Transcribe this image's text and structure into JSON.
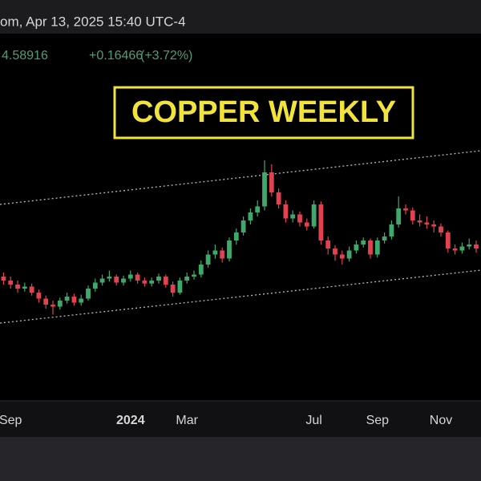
{
  "chart_data": {
    "type": "candlestick",
    "header": "om, Apr 13, 2025 15:40 UTC-4",
    "last_price": "4.58916",
    "change": "+0.16466",
    "change_percent": "(+3.72%)",
    "title": "COPPER WEEKLY",
    "up_color": "#3fa86b",
    "down_color": "#e0434f",
    "ylim": [
      2.8,
      6.4
    ],
    "categories": [
      null,
      "Sep",
      null,
      null,
      null,
      null,
      null,
      null,
      null,
      null,
      null,
      null,
      null,
      null,
      null,
      null,
      null,
      null,
      "2024",
      null,
      null,
      null,
      null,
      null,
      null,
      null,
      "Mar",
      null,
      null,
      null,
      null,
      null,
      null,
      null,
      null,
      null,
      null,
      null,
      null,
      null,
      null,
      null,
      null,
      null,
      "Jul",
      null,
      null,
      null,
      null,
      null,
      null,
      null,
      null,
      "Sep",
      null,
      null,
      null,
      null,
      null,
      null,
      null,
      null,
      "Nov",
      null,
      null,
      null,
      null,
      null
    ],
    "open": [
      4.04,
      4.0,
      3.96,
      3.92,
      3.94,
      3.88,
      3.82,
      3.76,
      3.74,
      3.8,
      3.84,
      3.78,
      3.82,
      3.92,
      3.98,
      4.02,
      4.04,
      3.98,
      4.02,
      4.06,
      4.0,
      3.97,
      4.0,
      4.04,
      3.96,
      3.88,
      4.0,
      4.04,
      4.06,
      4.16,
      4.26,
      4.3,
      4.22,
      4.4,
      4.48,
      4.6,
      4.68,
      4.74,
      5.08,
      4.88,
      4.76,
      4.62,
      4.66,
      4.58,
      4.54,
      4.76,
      4.4,
      4.32,
      4.26,
      4.22,
      4.3,
      4.36,
      4.4,
      4.26,
      4.4,
      4.44,
      4.56,
      4.72,
      4.7,
      4.6,
      4.58,
      4.56,
      4.54,
      4.48,
      4.32,
      4.3,
      4.34,
      4.36
    ],
    "high": [
      4.08,
      4.04,
      4.0,
      3.98,
      3.97,
      3.91,
      3.85,
      3.8,
      3.83,
      3.88,
      3.87,
      3.86,
      3.95,
      4.02,
      4.06,
      4.1,
      4.06,
      4.05,
      4.1,
      4.08,
      4.03,
      4.03,
      4.07,
      4.06,
      3.99,
      4.03,
      4.08,
      4.1,
      4.2,
      4.3,
      4.36,
      4.33,
      4.43,
      4.52,
      4.64,
      4.72,
      4.8,
      5.2,
      5.16,
      4.92,
      4.8,
      4.7,
      4.69,
      4.62,
      4.8,
      4.79,
      4.44,
      4.35,
      4.3,
      4.34,
      4.4,
      4.43,
      4.42,
      4.43,
      4.48,
      4.6,
      4.84,
      4.76,
      4.73,
      4.66,
      4.64,
      4.6,
      4.57,
      4.5,
      4.36,
      4.38,
      4.42,
      4.4
    ],
    "low": [
      3.96,
      3.92,
      3.88,
      3.89,
      3.85,
      3.78,
      3.72,
      3.66,
      3.71,
      3.77,
      3.75,
      3.75,
      3.8,
      3.89,
      3.95,
      3.99,
      3.95,
      3.95,
      3.99,
      3.97,
      3.94,
      3.94,
      3.97,
      3.93,
      3.84,
      3.86,
      3.97,
      4.01,
      4.03,
      4.13,
      4.22,
      4.18,
      4.19,
      4.36,
      4.45,
      4.56,
      4.64,
      4.7,
      4.84,
      4.72,
      4.58,
      4.58,
      4.54,
      4.5,
      4.52,
      4.36,
      4.26,
      4.2,
      4.16,
      4.19,
      4.27,
      4.33,
      4.22,
      4.23,
      4.37,
      4.41,
      4.53,
      4.66,
      4.56,
      4.54,
      4.52,
      4.48,
      4.44,
      4.28,
      4.26,
      4.27,
      4.31,
      4.28
    ],
    "close": [
      4.0,
      3.96,
      3.92,
      3.94,
      3.88,
      3.82,
      3.76,
      3.74,
      3.8,
      3.84,
      3.78,
      3.82,
      3.92,
      3.98,
      4.02,
      4.04,
      3.98,
      4.02,
      4.06,
      4.0,
      3.97,
      4.0,
      4.04,
      3.96,
      3.88,
      4.0,
      4.04,
      4.06,
      4.16,
      4.26,
      4.3,
      4.22,
      4.4,
      4.48,
      4.6,
      4.68,
      4.74,
      5.08,
      4.88,
      4.76,
      4.62,
      4.66,
      4.58,
      4.54,
      4.76,
      4.4,
      4.32,
      4.26,
      4.22,
      4.3,
      4.36,
      4.4,
      4.26,
      4.4,
      4.44,
      4.56,
      4.72,
      4.7,
      4.6,
      4.58,
      4.56,
      4.54,
      4.48,
      4.32,
      4.3,
      4.34,
      4.36,
      4.32
    ]
  }
}
